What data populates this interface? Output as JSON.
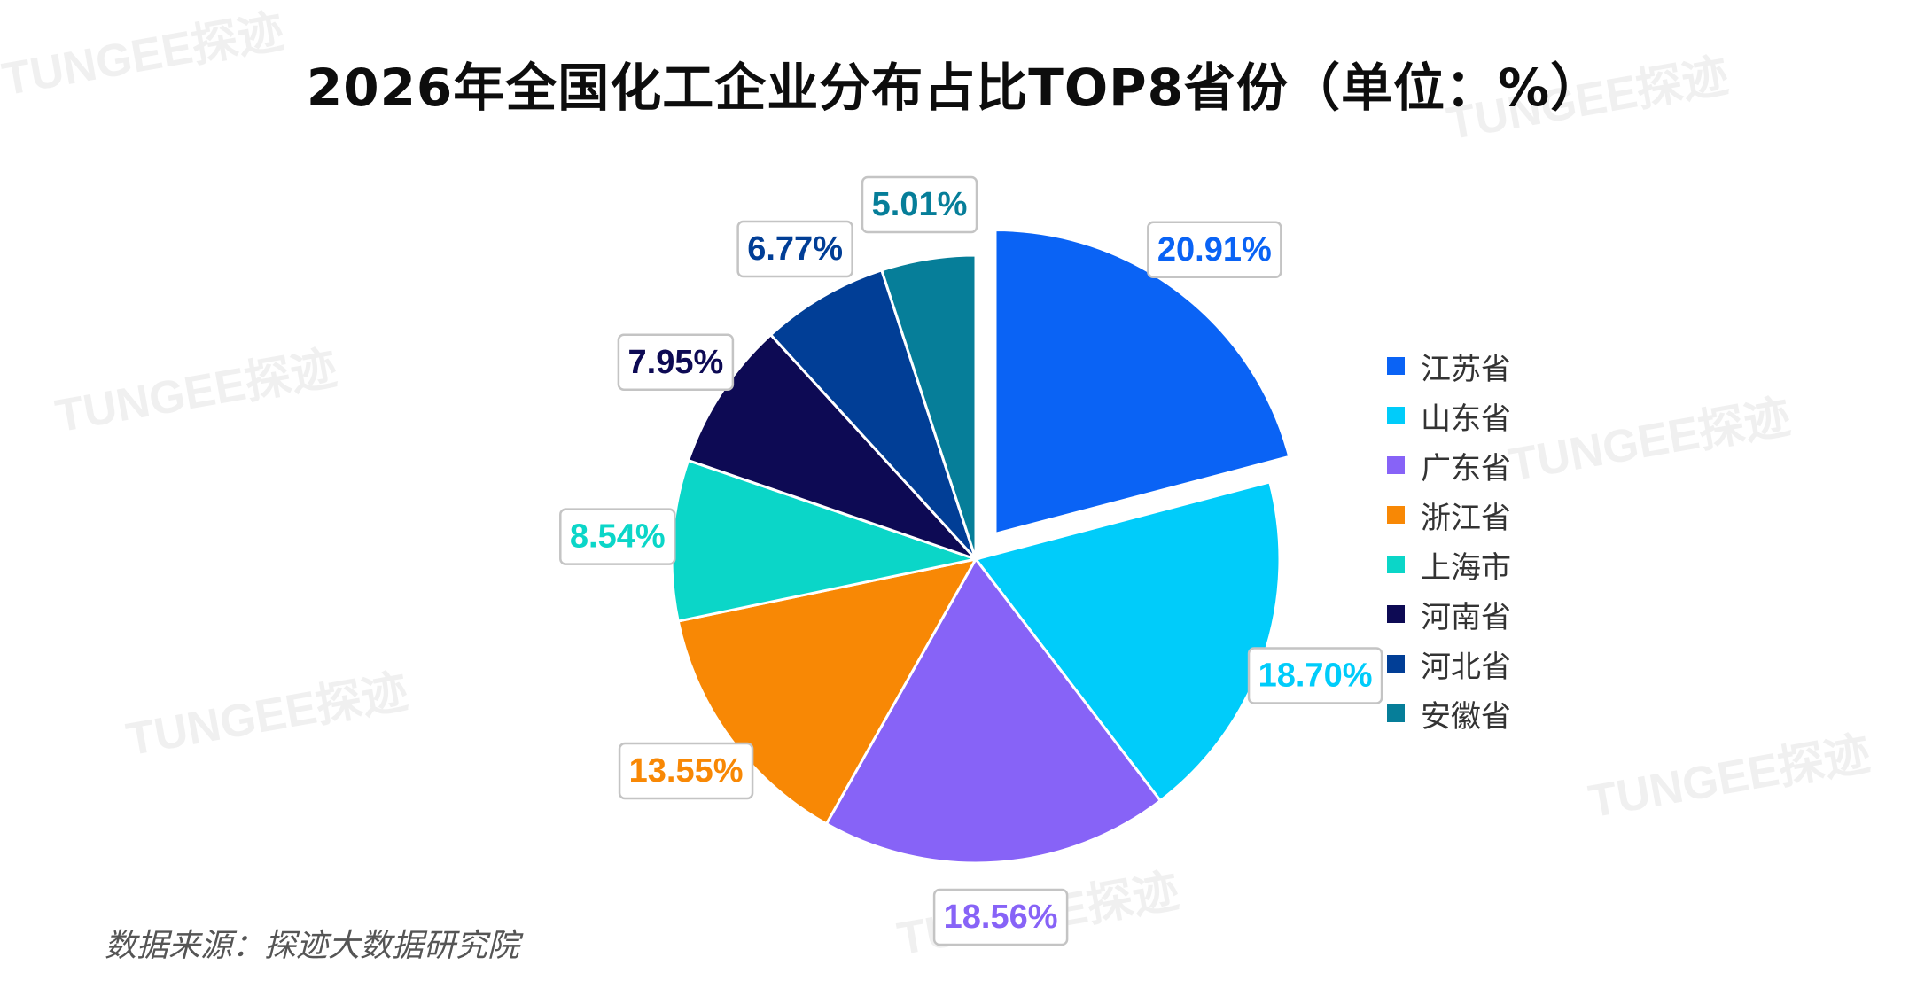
{
  "watermark": "TUNGEE探迹",
  "source_note": "数据来源：探迹大数据研究院",
  "chart_data": {
    "type": "pie",
    "title": "2026年全国化工企业分布占比TOP8省份（单位：%）",
    "unit": "%",
    "legend_position": "right",
    "exploded": [
      "江苏省"
    ],
    "slices": [
      {
        "name": "江苏省",
        "value": 20.91,
        "label": "20.91%",
        "color": "#0a63f5"
      },
      {
        "name": "山东省",
        "value": 18.7,
        "label": "18.70%",
        "color": "#00ccfa"
      },
      {
        "name": "广东省",
        "value": 18.56,
        "label": "18.56%",
        "color": "#8763f7"
      },
      {
        "name": "浙江省",
        "value": 13.55,
        "label": "13.55%",
        "color": "#f88805"
      },
      {
        "name": "上海市",
        "value": 8.54,
        "label": "8.54%",
        "color": "#0bd6c8"
      },
      {
        "name": "河南省",
        "value": 7.95,
        "label": "7.95%",
        "color": "#0d0a54"
      },
      {
        "name": "河北省",
        "value": 6.77,
        "label": "6.77%",
        "color": "#013e96"
      },
      {
        "name": "安徽省",
        "value": 5.01,
        "label": "5.01%",
        "color": "#067e99"
      }
    ]
  }
}
